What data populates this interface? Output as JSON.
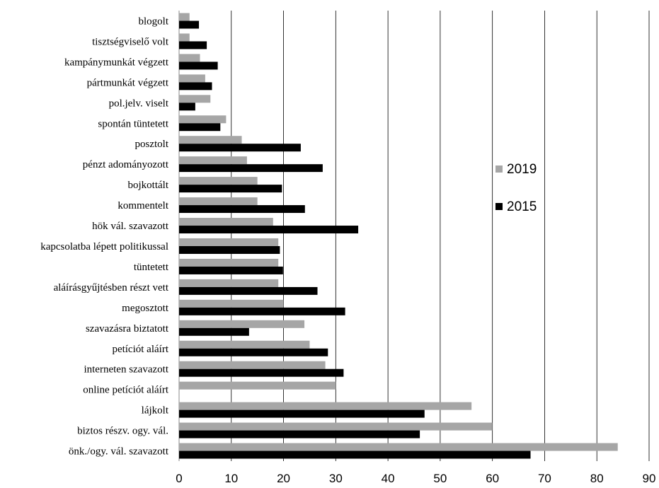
{
  "chart_data": {
    "type": "bar",
    "orientation": "horizontal",
    "categories": [
      "blogolt",
      "tisztségviselő volt",
      "kampánymunkát végzett",
      "pártmunkát végzett",
      "pol.jelv. viselt",
      "spontán tüntetett",
      "posztolt",
      "pénzt adományozott",
      "bojkottált",
      "kommentelt",
      "hök vál. szavazott",
      "kapcsolatba lépett politikussal",
      "tüntetett",
      "aláírásgyűjtésben részt vett",
      "megosztott",
      "szavazásra biztatott",
      "petíciót aláírt",
      "interneten szavazott",
      "online petíciót aláírt",
      "lájkolt",
      "biztos részv. ogy. vál.",
      "önk./ogy. vál. szavazott"
    ],
    "series": [
      {
        "name": "2019",
        "color": "#a6a6a6",
        "values": [
          2,
          2,
          4,
          5,
          6,
          9,
          12,
          13,
          15,
          15,
          18,
          19,
          19,
          19,
          20,
          24,
          25,
          28,
          30,
          56,
          60,
          84
        ]
      },
      {
        "name": "2015",
        "color": "#000000",
        "values": [
          3.8,
          5.3,
          7.4,
          6.3,
          3.1,
          7.9,
          23.3,
          27.5,
          19.7,
          24.1,
          34.3,
          19.3,
          19.9,
          26.5,
          31.8,
          13.4,
          28.5,
          31.5,
          null,
          47,
          46.1,
          67.3
        ]
      }
    ],
    "xlim": [
      0,
      90
    ],
    "xticks": [
      "0",
      "10",
      "20",
      "30",
      "40",
      "50",
      "60",
      "70",
      "80",
      "90"
    ],
    "grid": true,
    "legend_position": "right"
  }
}
